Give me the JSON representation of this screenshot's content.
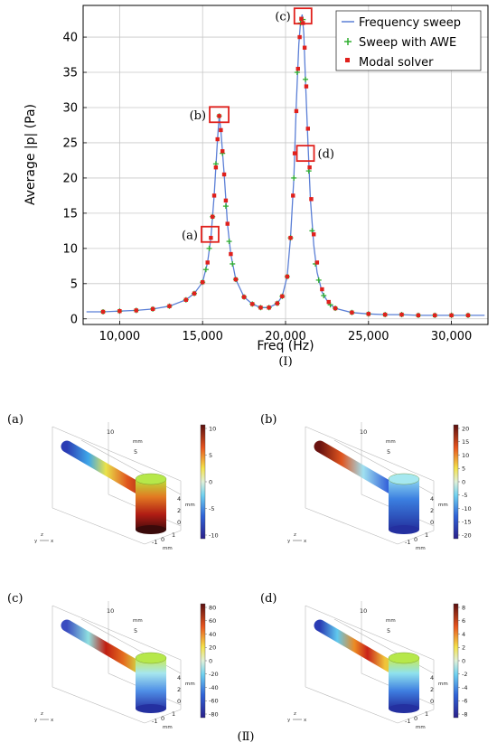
{
  "chart_data": {
    "type": "line",
    "xlabel": "Freq (Hz)",
    "ylabel": "Average |p| (Pa)",
    "xlim": [
      7800,
      32200
    ],
    "ylim": [
      -0.8,
      44.5
    ],
    "xticks": [
      10000,
      15000,
      20000,
      25000,
      30000
    ],
    "xtick_labels": [
      "10,000",
      "15,000",
      "20,000",
      "25,000",
      "30,000"
    ],
    "yticks": [
      0,
      5,
      10,
      15,
      20,
      25,
      30,
      35,
      40
    ],
    "grid": true,
    "legend_position": "top-right",
    "series": [
      {
        "name": "Frequency sweep",
        "color": "#5b7fd6",
        "style": "line",
        "x": [
          8000,
          9000,
          10000,
          11000,
          12000,
          13000,
          14000,
          14500,
          15000,
          15300,
          15500,
          15700,
          15900,
          16000,
          16100,
          16300,
          16500,
          16700,
          17000,
          17500,
          18000,
          18500,
          19000,
          19500,
          19800,
          20100,
          20300,
          20500,
          20650,
          20800,
          20900,
          21000,
          21100,
          21200,
          21350,
          21500,
          21700,
          21900,
          22200,
          22600,
          23000,
          24000,
          25000,
          26000,
          27000,
          28000,
          29000,
          30000,
          31000,
          32000
        ],
        "y": [
          1.0,
          1.0,
          1.1,
          1.2,
          1.4,
          1.8,
          2.7,
          3.6,
          5.2,
          8.0,
          11.5,
          17.5,
          25.5,
          28.8,
          26.8,
          20.5,
          13.5,
          9.2,
          5.6,
          3.1,
          2.1,
          1.6,
          1.6,
          2.2,
          3.2,
          6.0,
          11.5,
          20.0,
          30.5,
          39.0,
          42.0,
          43.2,
          40.5,
          34.0,
          25.0,
          17.0,
          10.5,
          6.6,
          3.8,
          2.2,
          1.5,
          0.9,
          0.7,
          0.6,
          0.6,
          0.5,
          0.5,
          0.5,
          0.5,
          0.5
        ]
      },
      {
        "name": "Sweep with AWE",
        "color": "#2fae2f",
        "style": "plus",
        "x": [
          9000,
          10000,
          11000,
          12000,
          13000,
          14000,
          14500,
          15000,
          15200,
          15400,
          15600,
          15800,
          16000,
          16200,
          16400,
          16600,
          16800,
          17000,
          17500,
          18000,
          18500,
          19000,
          19500,
          19800,
          20100,
          20300,
          20500,
          20700,
          20900,
          21050,
          21200,
          21400,
          21600,
          21800,
          22000,
          22300,
          22700,
          23000,
          24000,
          25000,
          26000,
          27000,
          28000,
          29000,
          30000,
          31000
        ],
        "y": [
          1.0,
          1.1,
          1.2,
          1.4,
          1.8,
          2.7,
          3.6,
          5.2,
          7.0,
          10.0,
          14.5,
          22.0,
          28.8,
          23.5,
          16.0,
          11.0,
          7.8,
          5.6,
          3.1,
          2.1,
          1.6,
          1.6,
          2.2,
          3.2,
          6.0,
          11.5,
          20.0,
          35.0,
          42.0,
          42.5,
          34.0,
          21.0,
          12.5,
          7.8,
          5.5,
          3.3,
          2.0,
          1.5,
          0.9,
          0.7,
          0.6,
          0.6,
          0.5,
          0.5,
          0.5,
          0.5
        ]
      },
      {
        "name": "Modal solver",
        "color": "#e0201c",
        "style": "dot",
        "x": [
          9000,
          10000,
          11000,
          12000,
          13000,
          14000,
          14500,
          15000,
          15300,
          15500,
          15600,
          15700,
          15800,
          15900,
          16000,
          16100,
          16200,
          16300,
          16400,
          16500,
          16700,
          17000,
          17500,
          18000,
          18500,
          19000,
          19500,
          19800,
          20100,
          20300,
          20450,
          20550,
          20650,
          20750,
          20850,
          20950,
          21050,
          21150,
          21250,
          21350,
          21450,
          21550,
          21700,
          21900,
          22200,
          22600,
          23000,
          24000,
          25000,
          26000,
          27000,
          28000,
          29000,
          30000,
          31000
        ],
        "y": [
          1.0,
          1.1,
          1.2,
          1.4,
          1.8,
          2.7,
          3.6,
          5.2,
          8.0,
          11.5,
          14.5,
          17.5,
          21.5,
          25.5,
          28.8,
          26.8,
          23.8,
          20.5,
          16.8,
          13.5,
          9.2,
          5.6,
          3.1,
          2.1,
          1.6,
          1.6,
          2.2,
          3.2,
          6.0,
          11.5,
          17.5,
          23.5,
          29.5,
          35.5,
          40.0,
          42.6,
          42.0,
          38.5,
          33.0,
          27.0,
          21.5,
          17.0,
          12.0,
          8.0,
          4.2,
          2.4,
          1.5,
          0.9,
          0.7,
          0.6,
          0.6,
          0.5,
          0.5,
          0.5,
          0.5
        ]
      }
    ],
    "markers": [
      {
        "label": "(a)",
        "x": 15450,
        "y": 12.0
      },
      {
        "label": "(b)",
        "x": 16000,
        "y": 29.0
      },
      {
        "label": "(c)",
        "x": 21050,
        "y": 43.0
      },
      {
        "label": "(d)",
        "x": 21200,
        "y": 23.5
      }
    ]
  },
  "caption_top": "(Ⅰ)",
  "caption_bottom": "(Ⅱ)",
  "panels": [
    {
      "label": "(a)",
      "colorbar_ticks": [
        "10",
        "5",
        "0",
        "-5",
        "-10"
      ],
      "scheme": "a"
    },
    {
      "label": "(b)",
      "colorbar_ticks": [
        "20",
        "15",
        "10",
        "5",
        "0",
        "-5",
        "-10",
        "-15",
        "-20"
      ],
      "scheme": "b"
    },
    {
      "label": "(c)",
      "colorbar_ticks": [
        "80",
        "60",
        "40",
        "20",
        "0",
        "-20",
        "-40",
        "-60",
        "-80"
      ],
      "scheme": "c"
    },
    {
      "label": "(d)",
      "colorbar_ticks": [
        "8",
        "6",
        "4",
        "2",
        "0",
        "-2",
        "-4",
        "-6",
        "-8"
      ],
      "scheme": "d"
    }
  ],
  "panel_axis_text": {
    "top_tick": "10",
    "mid_tick": "5",
    "unit": "mm",
    "z_ticks": [
      "4",
      "2",
      "0"
    ],
    "bottom_ticks": [
      "-1",
      "0",
      "1"
    ],
    "bottom_unit": "mm",
    "triad_z": "z",
    "triad_y": "y",
    "triad_x": "x"
  }
}
